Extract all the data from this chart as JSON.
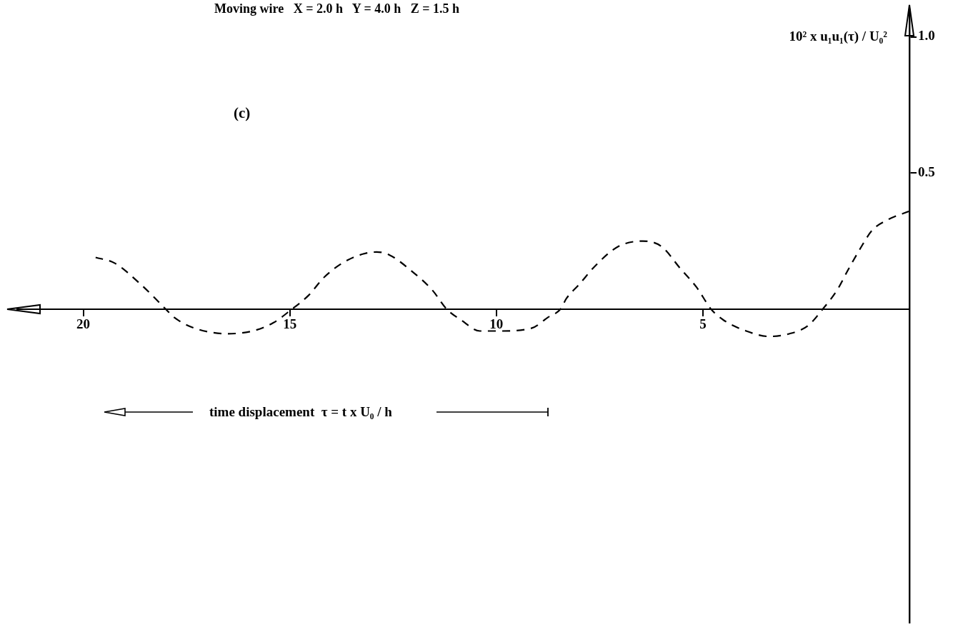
{
  "chart_data": {
    "type": "line",
    "title": "Moving wire   X = 2.0 h   Y = 4.0 h   Z = 1.5 h",
    "xlabel": "time displacement  τ = t x U₀ / h",
    "ylabel": "10² x u₁u₁(τ) / U₀²",
    "annotations": [
      "(c)"
    ],
    "series": [
      {
        "color": "#000000",
        "x": [
          0,
          0.5,
          0.9,
          1.2,
          1.5,
          1.75,
          2.1,
          2.45,
          2.9,
          3.4,
          3.95,
          4.5,
          4.8,
          5.15,
          5.55,
          6.0,
          6.45,
          7.05,
          7.6,
          8.0,
          8.3,
          8.45,
          8.75,
          9.15,
          9.9,
          10.4,
          10.85,
          11.2,
          11.55,
          12.05,
          12.6,
          12.9,
          13.6,
          14.15,
          14.55,
          14.95,
          15.4,
          15.9,
          16.5,
          17.3,
          17.8,
          18.0,
          18.6,
          19.25,
          19.7
        ],
        "values": [
          0.36,
          0.33,
          0.29,
          0.22,
          0.14,
          0.07,
          0,
          -0.06,
          -0.09,
          -0.1,
          -0.08,
          -0.04,
          0,
          0.08,
          0.15,
          0.23,
          0.25,
          0.23,
          0.16,
          0.09,
          0.04,
          0,
          -0.03,
          -0.07,
          -0.08,
          -0.08,
          -0.04,
          0,
          0.07,
          0.14,
          0.2,
          0.21,
          0.18,
          0.12,
          0.05,
          0,
          -0.05,
          -0.08,
          -0.09,
          -0.07,
          -0.03,
          0,
          0.09,
          0.17,
          0.19
        ]
      }
    ],
    "xlim": [
      21.6,
      0
    ],
    "xticks": [
      20,
      15,
      10,
      5
    ],
    "ylim": [
      -1.15,
      1.1
    ],
    "yticks": [
      {
        "value": 0.5,
        "label": "0.5"
      },
      {
        "value": 1,
        "label": "1.0"
      }
    ],
    "line_style": "dashed",
    "marker": "none"
  }
}
